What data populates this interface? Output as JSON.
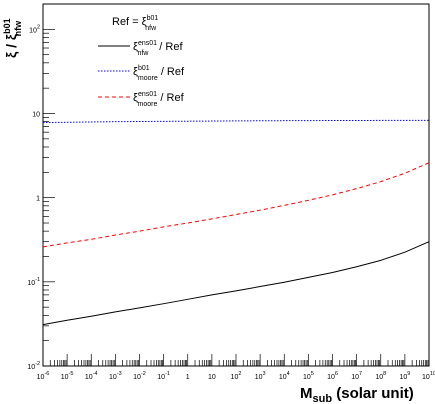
{
  "chart_data": {
    "type": "line",
    "x_scale": "log",
    "y_scale": "log",
    "xlim": [
      1e-06,
      10000000000.0
    ],
    "ylim": [
      0.01,
      200
    ],
    "grid": false,
    "legend_placement": "top-left",
    "xlabel": {
      "main": "M",
      "sub": "sub",
      "rest": " (solar unit)"
    },
    "ylabel": {
      "xi": "ξ",
      "slash": " / ",
      "sup": "b01",
      "sub": "nfw"
    },
    "x_tick_labels": [
      {
        "mant": "10",
        "exp": "-6",
        "x": 1e-06
      },
      {
        "mant": "10",
        "exp": "-5",
        "x": 1e-05
      },
      {
        "mant": "10",
        "exp": "-4",
        "x": 0.0001
      },
      {
        "mant": "10",
        "exp": "-3",
        "x": 0.001
      },
      {
        "mant": "10",
        "exp": "-2",
        "x": 0.01
      },
      {
        "mant": "10",
        "exp": "-1",
        "x": 0.1
      },
      {
        "mant": "1",
        "exp": "",
        "x": 1
      },
      {
        "mant": "10",
        "exp": "",
        "x": 10
      },
      {
        "mant": "10",
        "exp": "2",
        "x": 100.0
      },
      {
        "mant": "10",
        "exp": "3",
        "x": 1000.0
      },
      {
        "mant": "10",
        "exp": "4",
        "x": 10000.0
      },
      {
        "mant": "10",
        "exp": "5",
        "x": 100000.0
      },
      {
        "mant": "10",
        "exp": "6",
        "x": 1000000.0
      },
      {
        "mant": "10",
        "exp": "7",
        "x": 10000000.0
      },
      {
        "mant": "10",
        "exp": "8",
        "x": 100000000.0
      },
      {
        "mant": "10",
        "exp": "9",
        "x": 1000000000.0
      },
      {
        "mant": "10",
        "exp": "10",
        "x": 10000000000.0
      }
    ],
    "y_tick_labels": [
      {
        "mant": "10",
        "exp": "-2",
        "y": 0.01
      },
      {
        "mant": "10",
        "exp": "-1",
        "y": 0.1
      },
      {
        "mant": "1",
        "exp": "",
        "y": 1
      },
      {
        "mant": "10",
        "exp": "",
        "y": 10
      },
      {
        "mant": "10",
        "exp": "2",
        "y": 100
      }
    ],
    "legend_header": {
      "label": "Ref = ",
      "xi": "ξ",
      "sup": "b01",
      "sub": "nfw"
    },
    "series": [
      {
        "legend": {
          "xi": "ξ",
          "sup": "ens01",
          "sub": "nfw",
          "suffix": " / Ref"
        },
        "color": "#000000",
        "dash": "",
        "x": [
          1e-06,
          1e-05,
          0.0001,
          0.001,
          0.01,
          0.1,
          1,
          10,
          100.0,
          1000.0,
          10000.0,
          100000.0,
          1000000.0,
          10000000.0,
          100000000.0,
          1000000000.0,
          10000000000.0
        ],
        "y": [
          0.031,
          0.035,
          0.039,
          0.044,
          0.049,
          0.055,
          0.062,
          0.07,
          0.078,
          0.088,
          0.099,
          0.113,
          0.129,
          0.151,
          0.18,
          0.225,
          0.3
        ]
      },
      {
        "legend": {
          "xi": "ξ",
          "sup": "b01",
          "sub": "moore",
          "suffix": " / Ref"
        },
        "color": "#0000ff",
        "dash": "1.5,1.5",
        "x": [
          1e-06,
          0.001,
          1,
          1000.0,
          1000000.0,
          10000000000.0
        ],
        "y": [
          7.8,
          8.0,
          8.1,
          8.2,
          8.25,
          8.3
        ]
      },
      {
        "legend": {
          "xi": "ξ",
          "sup": "ens01",
          "sub": "moore",
          "suffix": " / Ref"
        },
        "color": "#ff0000",
        "dash": "4,3",
        "x": [
          1e-06,
          1e-05,
          0.0001,
          0.001,
          0.01,
          0.1,
          1,
          10,
          100.0,
          1000.0,
          10000.0,
          100000.0,
          1000000.0,
          10000000.0,
          100000000.0,
          1000000000.0,
          10000000000.0
        ],
        "y": [
          0.26,
          0.29,
          0.32,
          0.36,
          0.4,
          0.45,
          0.5,
          0.56,
          0.63,
          0.71,
          0.81,
          0.93,
          1.08,
          1.28,
          1.55,
          1.95,
          2.6
        ]
      }
    ]
  }
}
